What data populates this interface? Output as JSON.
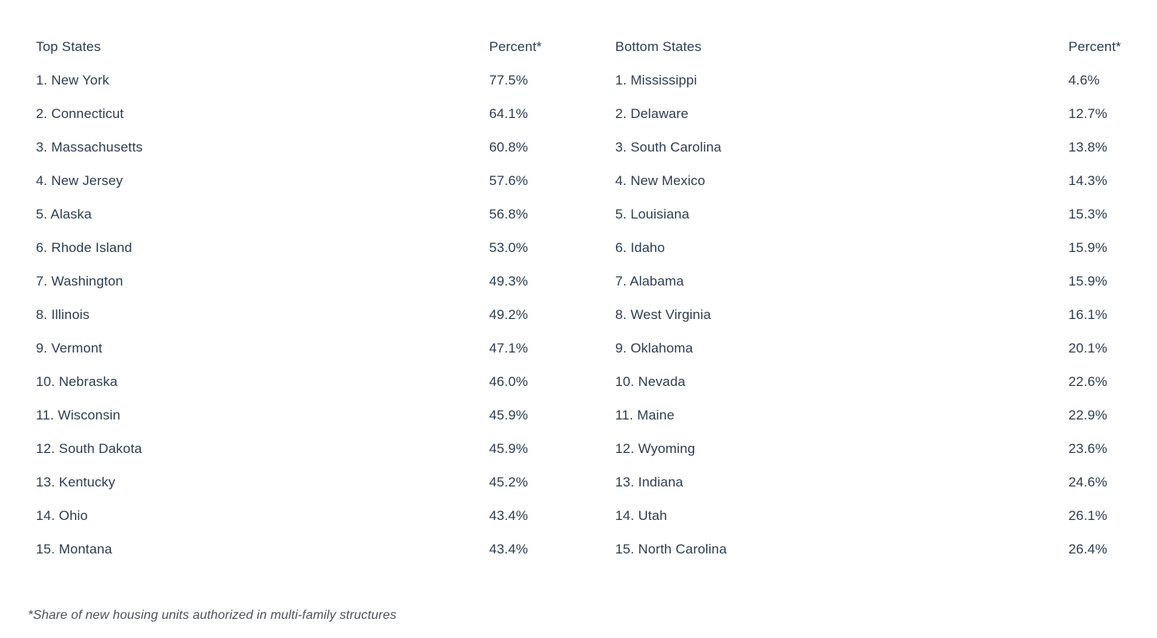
{
  "colors": {
    "text": "#2e3c50",
    "footnote_text": "#4d5156",
    "background": "#ffffff"
  },
  "table": {
    "top": {
      "header": {
        "name": "Top States",
        "percent": "Percent*"
      },
      "rows": [
        {
          "label": "1. New York",
          "percent": "77.5%"
        },
        {
          "label": "2. Connecticut",
          "percent": "64.1%"
        },
        {
          "label": "3. Massachusetts",
          "percent": "60.8%"
        },
        {
          "label": "4. New Jersey",
          "percent": "57.6%"
        },
        {
          "label": "5. Alaska",
          "percent": "56.8%"
        },
        {
          "label": "6. Rhode Island",
          "percent": "53.0%"
        },
        {
          "label": "7. Washington",
          "percent": "49.3%"
        },
        {
          "label": "8. Illinois",
          "percent": "49.2%"
        },
        {
          "label": "9. Vermont",
          "percent": "47.1%"
        },
        {
          "label": "10. Nebraska",
          "percent": "46.0%"
        },
        {
          "label": "11. Wisconsin",
          "percent": "45.9%"
        },
        {
          "label": "12. South Dakota",
          "percent": "45.9%"
        },
        {
          "label": "13. Kentucky",
          "percent": "45.2%"
        },
        {
          "label": "14. Ohio",
          "percent": "43.4%"
        },
        {
          "label": "15. Montana",
          "percent": "43.4%"
        }
      ]
    },
    "bottom": {
      "header": {
        "name": "Bottom States",
        "percent": "Percent*"
      },
      "rows": [
        {
          "label": "1. Mississippi",
          "percent": "4.6%"
        },
        {
          "label": "2. Delaware",
          "percent": "12.7%"
        },
        {
          "label": "3. South Carolina",
          "percent": "13.8%"
        },
        {
          "label": "4. New Mexico",
          "percent": "14.3%"
        },
        {
          "label": "5. Louisiana",
          "percent": "15.3%"
        },
        {
          "label": "6. Idaho",
          "percent": "15.9%"
        },
        {
          "label": "7. Alabama",
          "percent": "15.9%"
        },
        {
          "label": "8. West Virginia",
          "percent": "16.1%"
        },
        {
          "label": "9. Oklahoma",
          "percent": "20.1%"
        },
        {
          "label": "10. Nevada",
          "percent": "22.6%"
        },
        {
          "label": "11. Maine",
          "percent": "22.9%"
        },
        {
          "label": "12. Wyoming",
          "percent": "23.6%"
        },
        {
          "label": "13. Indiana",
          "percent": "24.6%"
        },
        {
          "label": "14. Utah",
          "percent": "26.1%"
        },
        {
          "label": "15. North Carolina",
          "percent": "26.4%"
        }
      ]
    }
  },
  "footnote": "*Share of new housing units authorized in multi-family structures",
  "chart_data": [
    {
      "type": "table",
      "title": "Top States",
      "columns": [
        "State",
        "Percent*"
      ],
      "rows": [
        [
          "New York",
          77.5
        ],
        [
          "Connecticut",
          64.1
        ],
        [
          "Massachusetts",
          60.8
        ],
        [
          "New Jersey",
          57.6
        ],
        [
          "Alaska",
          56.8
        ],
        [
          "Rhode Island",
          53.0
        ],
        [
          "Washington",
          49.3
        ],
        [
          "Illinois",
          49.2
        ],
        [
          "Vermont",
          47.1
        ],
        [
          "Nebraska",
          46.0
        ],
        [
          "Wisconsin",
          45.9
        ],
        [
          "South Dakota",
          45.9
        ],
        [
          "Kentucky",
          45.2
        ],
        [
          "Ohio",
          43.4
        ],
        [
          "Montana",
          43.4
        ]
      ],
      "note": "*Share of new housing units authorized in multi-family structures"
    },
    {
      "type": "table",
      "title": "Bottom States",
      "columns": [
        "State",
        "Percent*"
      ],
      "rows": [
        [
          "Mississippi",
          4.6
        ],
        [
          "Delaware",
          12.7
        ],
        [
          "South Carolina",
          13.8
        ],
        [
          "New Mexico",
          14.3
        ],
        [
          "Louisiana",
          15.3
        ],
        [
          "Idaho",
          15.9
        ],
        [
          "Alabama",
          15.9
        ],
        [
          "West Virginia",
          16.1
        ],
        [
          "Oklahoma",
          20.1
        ],
        [
          "Nevada",
          22.6
        ],
        [
          "Maine",
          22.9
        ],
        [
          "Wyoming",
          23.6
        ],
        [
          "Indiana",
          24.6
        ],
        [
          "Utah",
          26.1
        ],
        [
          "North Carolina",
          26.4
        ]
      ],
      "note": "*Share of new housing units authorized in multi-family structures"
    }
  ]
}
